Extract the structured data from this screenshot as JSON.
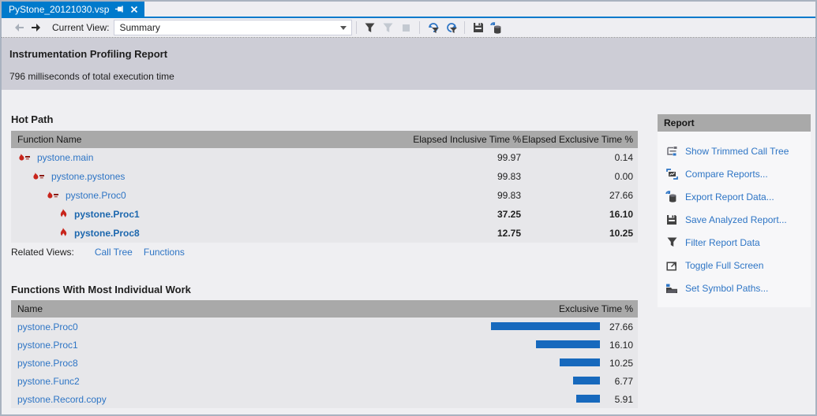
{
  "tab": {
    "title": "PyStone_20121030.vsp",
    "icons": [
      "pin-icon",
      "close-icon"
    ]
  },
  "toolbar": {
    "nav_icons": [
      "back-arrow-icon",
      "forward-arrow-icon"
    ],
    "current_view_label": "Current View:",
    "view_selected": "Summary",
    "icons": [
      "filter-icon",
      "filter-disabled-icon",
      "stop-disabled-icon",
      "reapply-filter-icon",
      "apply-filter-icon",
      "save-report-icon",
      "export-data-icon"
    ]
  },
  "report_header": {
    "title": "Instrumentation Profiling Report",
    "subtitle": "796 milliseconds of total execution time"
  },
  "hot_path": {
    "title": "Hot Path",
    "columns": [
      "Function Name",
      "Elapsed Inclusive Time %",
      "Elapsed Exclusive Time %"
    ],
    "rows": [
      {
        "name": "pystone.main",
        "inclusive": "99.97",
        "exclusive": "0.14",
        "indent": 0,
        "hot": false
      },
      {
        "name": "pystone.pystones",
        "inclusive": "99.83",
        "exclusive": "0.00",
        "indent": 1,
        "hot": false
      },
      {
        "name": "pystone.Proc0",
        "inclusive": "99.83",
        "exclusive": "27.66",
        "indent": 2,
        "hot": false
      },
      {
        "name": "pystone.Proc1",
        "inclusive": "37.25",
        "exclusive": "16.10",
        "indent": 3,
        "hot": true
      },
      {
        "name": "pystone.Proc8",
        "inclusive": "12.75",
        "exclusive": "10.25",
        "indent": 3,
        "hot": true
      }
    ],
    "related_views_label": "Related Views:",
    "related_views": [
      "Call Tree",
      "Functions"
    ]
  },
  "individual_work": {
    "title": "Functions With Most Individual Work",
    "columns": [
      "Name",
      "Exclusive Time %"
    ],
    "bar_color": "#1769BD",
    "rows": [
      {
        "name": "pystone.Proc0",
        "value": "27.66"
      },
      {
        "name": "pystone.Proc1",
        "value": "16.10"
      },
      {
        "name": "pystone.Proc8",
        "value": "10.25"
      },
      {
        "name": "pystone.Func2",
        "value": "6.77"
      },
      {
        "name": "pystone.Record.copy",
        "value": "5.91"
      }
    ]
  },
  "report_panel": {
    "title": "Report",
    "items": [
      {
        "label": "Show Trimmed Call Tree",
        "icon": "trimmed-call-tree-icon"
      },
      {
        "label": "Compare Reports...",
        "icon": "compare-reports-icon"
      },
      {
        "label": "Export Report Data...",
        "icon": "export-data-icon"
      },
      {
        "label": "Save Analyzed Report...",
        "icon": "save-report-icon"
      },
      {
        "label": "Filter Report Data",
        "icon": "filter-icon"
      },
      {
        "label": "Toggle Full Screen",
        "icon": "full-screen-icon"
      },
      {
        "label": "Set Symbol Paths...",
        "icon": "symbol-paths-icon"
      }
    ]
  },
  "colors": {
    "accent_blue": "#007ACC",
    "link_blue": "#2E75C5",
    "hot_link_blue": "#1C67AE",
    "bar_blue": "#1769BD",
    "flame_red": "#C8251C",
    "header_band": "#CDCDD6",
    "table_header_gray": "#A9A9A9"
  }
}
